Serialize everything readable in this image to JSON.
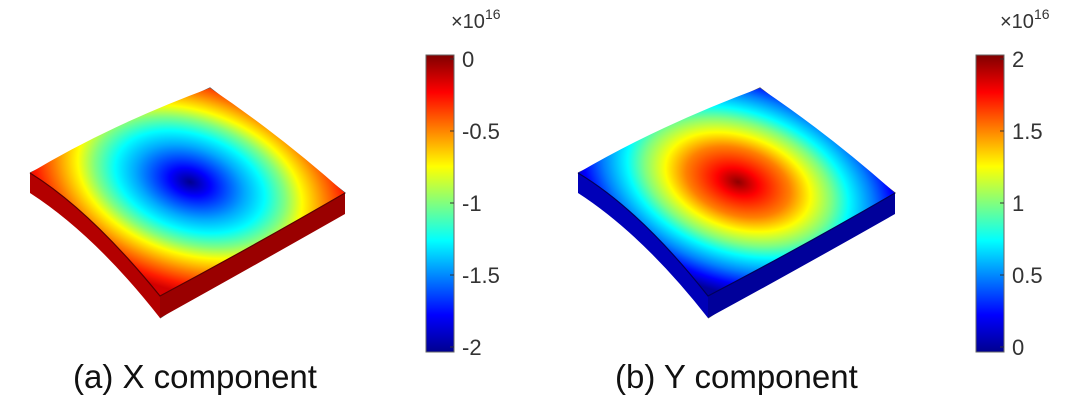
{
  "panels": [
    {
      "caption": "(a) X component",
      "colorbar": {
        "exponent_base": "×10",
        "exponent_power": "16",
        "ticks": [
          "0",
          "-0.5",
          "-1",
          "-1.5",
          "-2"
        ]
      },
      "field": {
        "min": -2,
        "max": 0,
        "center_value": -2,
        "edge_value": 0
      }
    },
    {
      "caption": "(b) Y component",
      "colorbar": {
        "exponent_base": "×10",
        "exponent_power": "16",
        "ticks": [
          "2",
          "1.5",
          "1",
          "0.5",
          "0"
        ]
      },
      "field": {
        "min": 0,
        "max": 2,
        "center_value": 2,
        "edge_value": 0
      }
    }
  ],
  "colormap": "jet",
  "colors": {
    "dark_red": "#800000",
    "red": "#ff0000",
    "yellow": "#ffff00",
    "cyan": "#00ffff",
    "blue": "#0000ff",
    "dark_blue": "#00008f"
  }
}
